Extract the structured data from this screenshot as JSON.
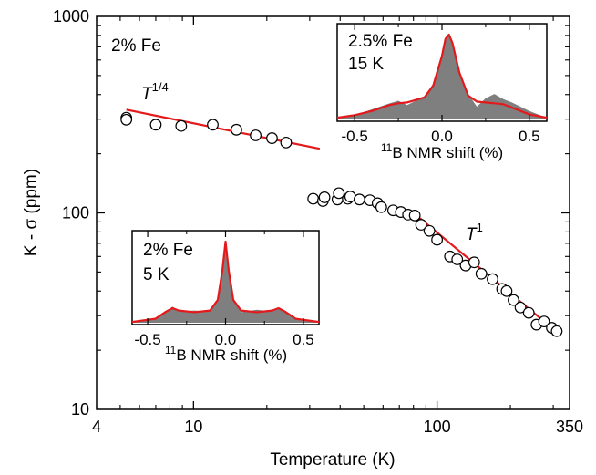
{
  "chart_data": {
    "type": "scatter",
    "xlabel": "Temperature (K)",
    "ylabel": "K - σ (ppm)",
    "x_scale": "log",
    "y_scale": "log",
    "xlim": [
      4,
      350
    ],
    "ylim": [
      10,
      1000
    ],
    "x_ticks": [
      "4",
      "10",
      "100",
      "350"
    ],
    "y_ticks": [
      "10",
      "100",
      "1000"
    ],
    "grid": false,
    "legend": "none",
    "colors": {
      "fit": "#e31a1c",
      "markers": "#000000",
      "spectrum_fill": "#7f7f7f"
    },
    "annotations": {
      "sample": "2% Fe",
      "fit_low": {
        "base": "T",
        "exponent": "1/4"
      },
      "fit_high": {
        "base": "T",
        "exponent": "1"
      }
    },
    "series": [
      {
        "kind": "markers",
        "x": [
          5.3,
          5.3,
          7.0,
          8.9,
          12.0,
          15.0,
          18.0,
          21.0,
          24.0,
          31.0,
          34.0,
          34.5,
          39.0,
          39.5,
          43.0,
          44.0,
          48.0,
          53.0,
          57.0,
          59.0,
          66.0,
          71.0,
          76.0,
          81.0,
          86.0,
          93.0,
          100.0,
          113.0,
          121.0,
          131.0,
          142.0,
          152.0,
          169.0,
          185.0,
          193.0,
          206.0,
          220.0,
          238.0,
          256.0,
          275.0,
          296.0,
          310.0
        ],
        "y": [
          305,
          298,
          281,
          277,
          281,
          265,
          248,
          240,
          228,
          118,
          115,
          120,
          117,
          126,
          118,
          121,
          117,
          116,
          112,
          107,
          103,
          101,
          98,
          97,
          87,
          81,
          73,
          60,
          58,
          54,
          56,
          49,
          46,
          41,
          40,
          36,
          33,
          31,
          27,
          28,
          26,
          25
        ]
      },
      {
        "kind": "line",
        "x": [
          5.3,
          33.0
        ],
        "y": [
          335,
          212
        ]
      },
      {
        "kind": "line",
        "x": [
          80.0,
          320.0
        ],
        "y": [
          100,
          24
        ]
      }
    ],
    "insets": [
      {
        "type": "area",
        "sample": "2.5% Fe",
        "temperature": "15 K",
        "xlabel": {
          "sup": "11",
          "text": "B NMR shift (%)"
        },
        "xlim": [
          -0.6,
          0.6
        ],
        "x_ticks": [
          "-0.5",
          "0.0",
          "0.5"
        ],
        "x": [
          -0.6,
          -0.5,
          -0.4,
          -0.3,
          -0.25,
          -0.2,
          -0.1,
          -0.05,
          0.0,
          0.02,
          0.04,
          0.06,
          0.1,
          0.15,
          0.2,
          0.25,
          0.3,
          0.35,
          0.4,
          0.5,
          0.6
        ],
        "fit": [
          0.02,
          0.05,
          0.1,
          0.17,
          0.19,
          0.2,
          0.26,
          0.4,
          0.75,
          0.95,
          1.0,
          0.9,
          0.55,
          0.28,
          0.21,
          0.2,
          0.19,
          0.18,
          0.14,
          0.06,
          0.02
        ],
        "data": [
          0.02,
          0.05,
          0.12,
          0.19,
          0.22,
          0.17,
          0.27,
          0.42,
          0.78,
          0.92,
          1.0,
          0.88,
          0.55,
          0.3,
          0.15,
          0.25,
          0.3,
          0.24,
          0.2,
          0.1,
          0.02
        ]
      },
      {
        "type": "area",
        "sample": "2% Fe",
        "temperature": "5 K",
        "xlabel": {
          "sup": "11",
          "text": "B NMR shift (%)"
        },
        "xlim": [
          -0.6,
          0.6
        ],
        "x_ticks": [
          "-0.5",
          "0.0",
          "0.5"
        ],
        "x": [
          -0.6,
          -0.45,
          -0.38,
          -0.34,
          -0.3,
          -0.2,
          -0.1,
          -0.05,
          -0.02,
          0.0,
          0.02,
          0.05,
          0.1,
          0.2,
          0.3,
          0.34,
          0.38,
          0.45,
          0.6
        ],
        "fit": [
          0.01,
          0.05,
          0.14,
          0.18,
          0.15,
          0.13,
          0.15,
          0.28,
          0.65,
          1.0,
          0.65,
          0.28,
          0.15,
          0.13,
          0.15,
          0.18,
          0.14,
          0.05,
          0.01
        ],
        "data": [
          0.01,
          0.06,
          0.14,
          0.2,
          0.14,
          0.15,
          0.14,
          0.3,
          0.7,
          1.0,
          0.68,
          0.3,
          0.13,
          0.16,
          0.14,
          0.17,
          0.15,
          0.06,
          0.01
        ]
      }
    ]
  }
}
